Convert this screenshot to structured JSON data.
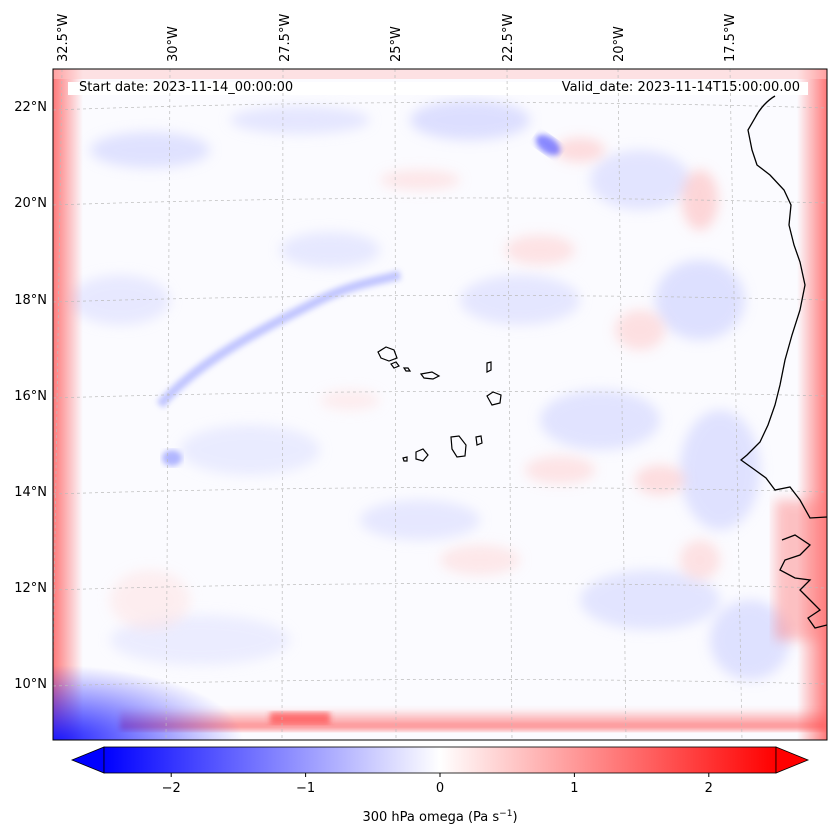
{
  "map": {
    "start_date": "Start date: 2023-11-14_00:00:00",
    "valid_date": "Valid_date: 2023-11-14T15:00:00.00",
    "lon_labels": [
      "32.5°W",
      "30°W",
      "27.5°W",
      "25°W",
      "22.5°W",
      "20°W",
      "17.5°W"
    ],
    "lat_labels": [
      "22°N",
      "20°N",
      "18°N",
      "16°N",
      "14°N",
      "12°N",
      "10°N"
    ]
  },
  "colorbar": {
    "label": "300 hPa omega (Pa s",
    "label_exponent": "−1",
    "label_close": ")",
    "ticks": [
      "−2",
      "−1",
      "0",
      "1",
      "2"
    ],
    "tick_values": [
      -2,
      -1,
      0,
      1,
      2
    ],
    "range": [
      -2.5,
      2.5
    ],
    "colors": {
      "negative": "#0000ff",
      "neutral": "#ffffff",
      "positive": "#ff0000"
    }
  },
  "colors": {
    "coastline": "#000000",
    "gridline": "#bbbbbb"
  }
}
